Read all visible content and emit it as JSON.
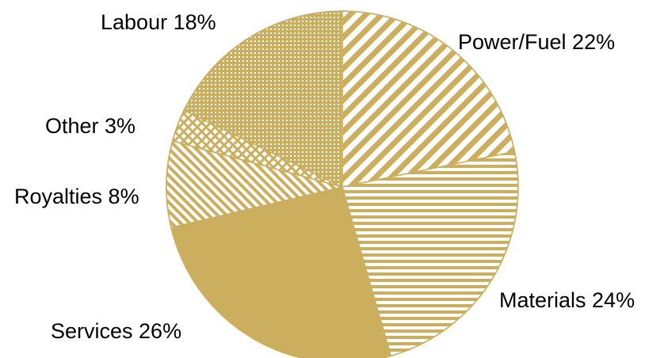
{
  "chart_data": {
    "type": "pie",
    "title": "",
    "slices": [
      {
        "label": "Power/Fuel 22%",
        "value": 22,
        "pattern": "diagonal-down"
      },
      {
        "label": "Materials 24%",
        "value": 24,
        "pattern": "horizontal"
      },
      {
        "label": "Services  26%",
        "value": 26,
        "pattern": "solid"
      },
      {
        "label": "Royalties 8%",
        "value": 8,
        "pattern": "diagonal-up"
      },
      {
        "label": "Other 3%",
        "value": 3,
        "pattern": "crosshatch"
      },
      {
        "label": "Labour 18%",
        "value": 18,
        "pattern": "dots"
      }
    ],
    "start": "top",
    "direction": "clockwise",
    "legend": "none",
    "colors": {
      "fill": "#CBAE5E",
      "background": "#FFFFFF"
    }
  }
}
